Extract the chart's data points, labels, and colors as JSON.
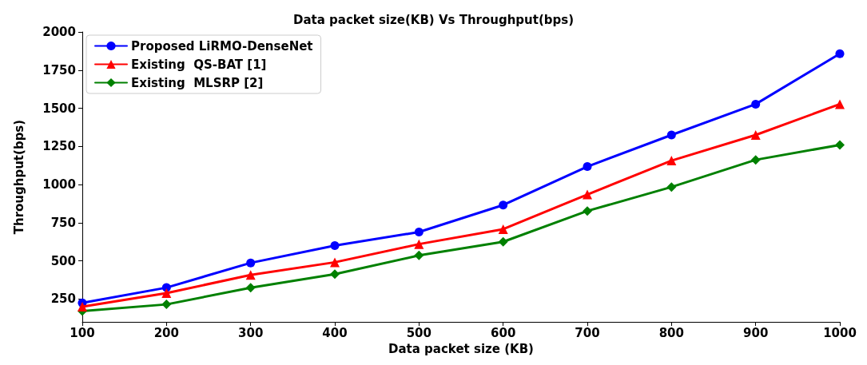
{
  "chart_data": {
    "type": "line",
    "title": "Data packet size(KB) Vs Throughput(bps)",
    "xlabel": "Data packet size (KB)",
    "ylabel": "Throughput(bps)",
    "x": [
      100,
      200,
      300,
      400,
      500,
      600,
      700,
      800,
      900,
      1000
    ],
    "series": [
      {
        "name": "Proposed LiRMO-DenseNet",
        "color": "#0000ff",
        "marker": "circle",
        "values": [
          225,
          325,
          487,
          600,
          689,
          866,
          1118,
          1325,
          1527,
          1857
        ]
      },
      {
        "name": "Existing  QS-BAT [1]",
        "color": "#ff0000",
        "marker": "triangle",
        "values": [
          200,
          289,
          408,
          491,
          610,
          708,
          935,
          1157,
          1325,
          1527
        ]
      },
      {
        "name": "Existing  MLSRP [2]",
        "color": "#008000",
        "marker": "diamond",
        "values": [
          171,
          215,
          324,
          413,
          536,
          625,
          827,
          984,
          1162,
          1260
        ]
      }
    ],
    "xlim": [
      100,
      1000
    ],
    "xticks": [
      100,
      200,
      300,
      400,
      500,
      600,
      700,
      800,
      900,
      1000
    ],
    "ylim": [
      100,
      2000
    ],
    "yticks": [
      250,
      500,
      750,
      1000,
      1250,
      1500,
      1750,
      2000
    ],
    "grid": false,
    "legend": "top left",
    "line_style": "solid"
  }
}
